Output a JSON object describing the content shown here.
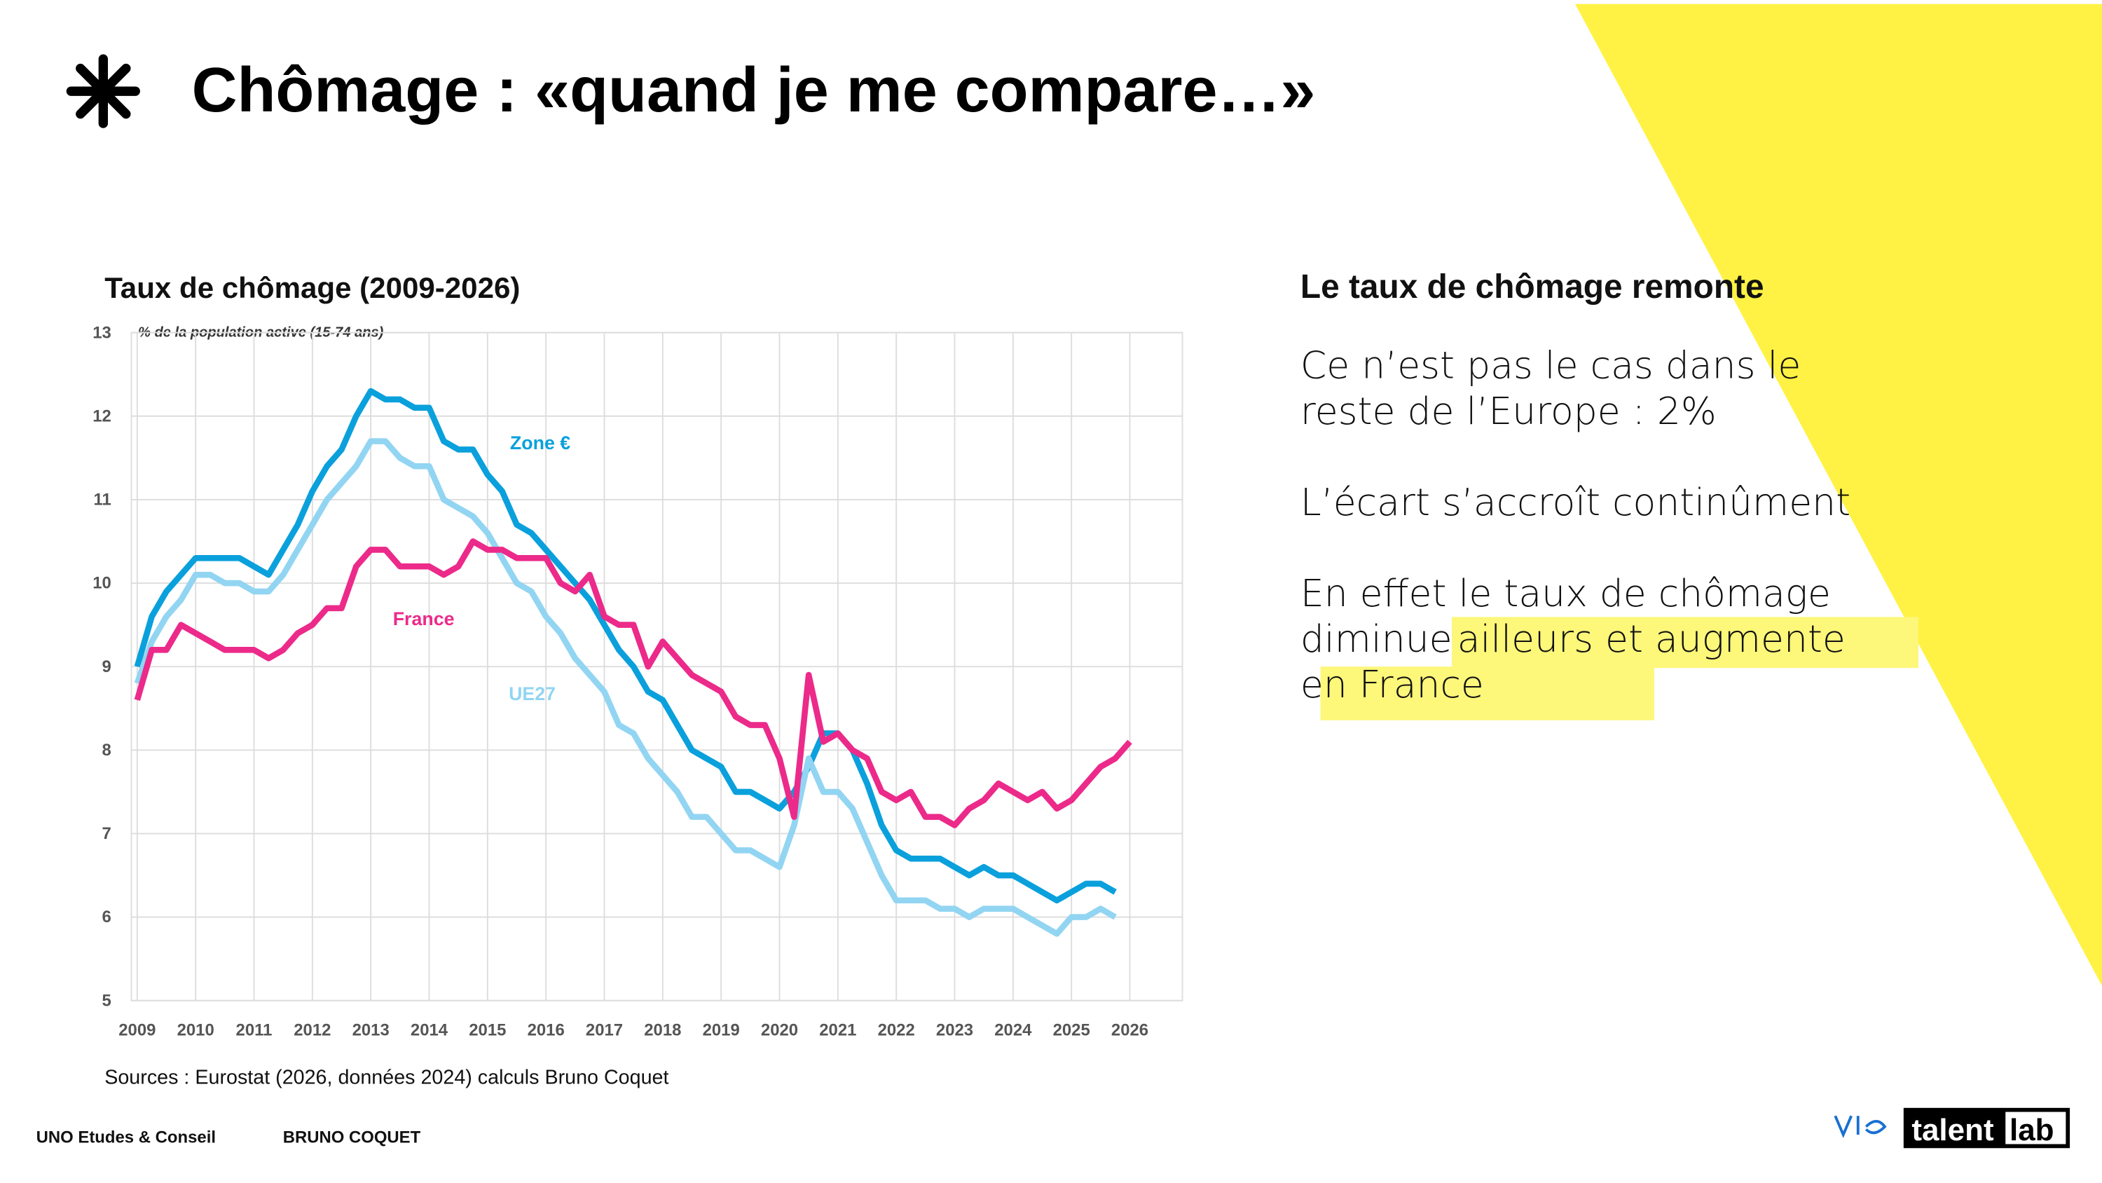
{
  "header": {
    "title": "Chômage : «quand je me compare…»"
  },
  "chart_data": {
    "type": "line",
    "title": "Taux de chômage (2009-2026)",
    "subtitle": "% de la population active (15-74 ans)",
    "x": [
      2009,
      2009.25,
      2009.5,
      2009.75,
      2010,
      2010.25,
      2010.5,
      2010.75,
      2011,
      2011.25,
      2011.5,
      2011.75,
      2012,
      2012.25,
      2012.5,
      2012.75,
      2013,
      2013.25,
      2013.5,
      2013.75,
      2014,
      2014.25,
      2014.5,
      2014.75,
      2015,
      2015.25,
      2015.5,
      2015.75,
      2016,
      2016.25,
      2016.5,
      2016.75,
      2017,
      2017.25,
      2017.5,
      2017.75,
      2018,
      2018.25,
      2018.5,
      2018.75,
      2019,
      2019.25,
      2019.5,
      2019.75,
      2020,
      2020.25,
      2020.5,
      2020.75,
      2021,
      2021.25,
      2021.5,
      2021.75,
      2022,
      2022.25,
      2022.5,
      2022.75,
      2023,
      2023.25,
      2023.5,
      2023.75,
      2024,
      2024.25,
      2024.5,
      2024.75,
      2025,
      2025.25,
      2025.5,
      2025.75,
      2026
    ],
    "series": [
      {
        "name": "Zone €",
        "color": "#0aa0dc",
        "values": [
          9.0,
          9.6,
          9.9,
          10.1,
          10.3,
          10.3,
          10.3,
          10.3,
          10.2,
          10.1,
          10.4,
          10.7,
          11.1,
          11.4,
          11.6,
          12.0,
          12.3,
          12.2,
          12.2,
          12.1,
          12.1,
          11.7,
          11.6,
          11.6,
          11.3,
          11.1,
          10.7,
          10.6,
          10.4,
          10.2,
          10.0,
          9.8,
          9.5,
          9.2,
          9.0,
          8.7,
          8.6,
          8.3,
          8.0,
          7.9,
          7.8,
          7.5,
          7.5,
          7.4,
          7.3,
          7.5,
          7.8,
          8.2,
          8.2,
          8.0,
          7.6,
          7.1,
          6.8,
          6.7,
          6.7,
          6.7,
          6.6,
          6.5,
          6.6,
          6.5,
          6.5,
          6.4,
          6.3,
          6.2,
          6.3,
          6.4,
          6.4,
          6.3,
          null
        ]
      },
      {
        "name": "UE27",
        "color": "#92d5f2",
        "values": [
          8.8,
          9.3,
          9.6,
          9.8,
          10.1,
          10.1,
          10.0,
          10.0,
          9.9,
          9.9,
          10.1,
          10.4,
          10.7,
          11.0,
          11.2,
          11.4,
          11.7,
          11.7,
          11.5,
          11.4,
          11.4,
          11.0,
          10.9,
          10.8,
          10.6,
          10.3,
          10.0,
          9.9,
          9.6,
          9.4,
          9.1,
          8.9,
          8.7,
          8.3,
          8.2,
          7.9,
          7.7,
          7.5,
          7.2,
          7.2,
          7.0,
          6.8,
          6.8,
          6.7,
          6.6,
          7.1,
          7.9,
          7.5,
          7.5,
          7.3,
          6.9,
          6.5,
          6.2,
          6.2,
          6.2,
          6.1,
          6.1,
          6.0,
          6.1,
          6.1,
          6.1,
          6.0,
          5.9,
          5.8,
          6.0,
          6.0,
          6.1,
          6.0,
          null
        ]
      },
      {
        "name": "France",
        "color": "#ec2a8a",
        "values": [
          8.6,
          9.2,
          9.2,
          9.5,
          9.4,
          9.3,
          9.2,
          9.2,
          9.2,
          9.1,
          9.2,
          9.4,
          9.5,
          9.7,
          9.7,
          10.2,
          10.4,
          10.4,
          10.2,
          10.2,
          10.2,
          10.1,
          10.2,
          10.5,
          10.4,
          10.4,
          10.3,
          10.3,
          10.3,
          10.0,
          9.9,
          10.1,
          9.6,
          9.5,
          9.5,
          9.0,
          9.3,
          9.1,
          8.9,
          8.8,
          8.7,
          8.4,
          8.3,
          8.3,
          7.9,
          7.2,
          8.9,
          8.1,
          8.2,
          8.0,
          7.9,
          7.5,
          7.4,
          7.5,
          7.2,
          7.2,
          7.1,
          7.3,
          7.4,
          7.6,
          7.5,
          7.4,
          7.5,
          7.3,
          7.4,
          7.6,
          7.8,
          7.9,
          8.1
        ]
      }
    ],
    "xlim": [
      2008.9,
      2026.9
    ],
    "xticks": [
      2009,
      2010,
      2011,
      2012,
      2013,
      2014,
      2015,
      2016,
      2017,
      2018,
      2019,
      2020,
      2021,
      2022,
      2023,
      2024,
      2025,
      2026
    ],
    "ylim": [
      5,
      13
    ],
    "yticks": [
      5,
      6,
      7,
      8,
      9,
      10,
      11,
      12,
      13
    ],
    "grid": true,
    "source": "Sources : Eurostat (2026, données 2024) calculs Bruno Coquet"
  },
  "text_panel": {
    "heading": "Le taux de chômage remonte",
    "p1": [
      "Ce n’est pas le cas dans le",
      "reste de l’Europe : 2%"
    ],
    "p2": "L’écart s’accroît continûment",
    "p3": [
      "En effet le taux de chômage",
      "diminue",
      "ailleurs et augmente",
      "en France"
    ]
  },
  "footer": {
    "left": "UNO Etudes & Conseil",
    "author": "BRUNO COQUET",
    "logo_a": "talent",
    "logo_b": "lab"
  }
}
